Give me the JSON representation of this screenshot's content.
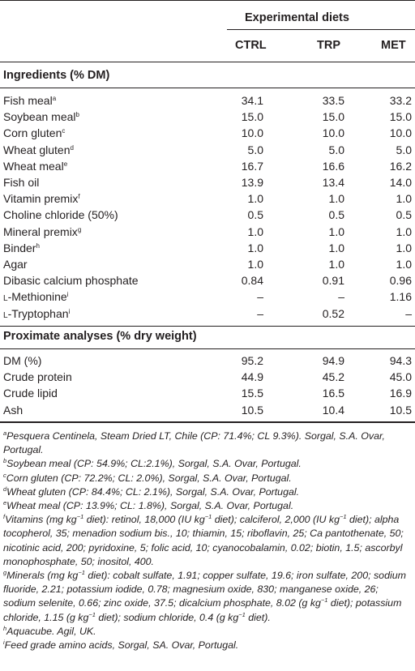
{
  "header": {
    "group_label": "Experimental diets",
    "columns": [
      "CTRL",
      "TRP",
      "MET"
    ]
  },
  "ingredients": {
    "title": "Ingredients (% DM)",
    "rows": [
      {
        "label": "Fish meal",
        "sup": "a",
        "ctrl": "34.1",
        "trp": "33.5",
        "met": "33.2"
      },
      {
        "label": "Soybean meal",
        "sup": "b",
        "ctrl": "15.0",
        "trp": "15.0",
        "met": "15.0"
      },
      {
        "label": "Corn gluten",
        "sup": "c",
        "ctrl": "10.0",
        "trp": "10.0",
        "met": "10.0"
      },
      {
        "label": "Wheat gluten",
        "sup": "d",
        "ctrl": "5.0",
        "trp": "5.0",
        "met": "5.0"
      },
      {
        "label": "Wheat meal",
        "sup": "e",
        "ctrl": "16.7",
        "trp": "16.6",
        "met": "16.2"
      },
      {
        "label": "Fish oil",
        "sup": "",
        "ctrl": "13.9",
        "trp": "13.4",
        "met": "14.0"
      },
      {
        "label": "Vitamin premix",
        "sup": "f",
        "ctrl": "1.0",
        "trp": "1.0",
        "met": "1.0"
      },
      {
        "label": "Choline chloride (50%)",
        "sup": "",
        "ctrl": "0.5",
        "trp": "0.5",
        "met": "0.5"
      },
      {
        "label": "Mineral premix",
        "sup": "g",
        "ctrl": "1.0",
        "trp": "1.0",
        "met": "1.0"
      },
      {
        "label": "Binder",
        "sup": "h",
        "ctrl": "1.0",
        "trp": "1.0",
        "met": "1.0"
      },
      {
        "label": "Agar",
        "sup": "",
        "ctrl": "1.0",
        "trp": "1.0",
        "met": "1.0"
      },
      {
        "label": "Dibasic calcium phosphate",
        "sup": "",
        "ctrl": "0.84",
        "trp": "0.91",
        "met": "0.96"
      },
      {
        "prefix": "l",
        "label": "-Methionine",
        "sup": "i",
        "ctrl": "–",
        "trp": "–",
        "met": "1.16"
      },
      {
        "prefix": "l",
        "label": "-Tryptophan",
        "sup": "i",
        "ctrl": "–",
        "trp": "0.52",
        "met": "–"
      }
    ]
  },
  "proximate": {
    "title": "Proximate analyses (% dry weight)",
    "rows": [
      {
        "label": "DM (%)",
        "ctrl": "95.2",
        "trp": "94.9",
        "met": "94.3"
      },
      {
        "label": "Crude protein",
        "ctrl": "44.9",
        "trp": "45.2",
        "met": "45.0"
      },
      {
        "label": "Crude lipid",
        "ctrl": "15.5",
        "trp": "16.5",
        "met": "16.9"
      },
      {
        "label": "Ash",
        "ctrl": "10.5",
        "trp": "10.4",
        "met": "10.5"
      }
    ]
  },
  "footnotes": {
    "a_mark": "a",
    "a_text": "Pesquera Centinela, Steam Dried LT, Chile (CP: 71.4%; CL 9.3%). Sorgal, S.A. Ovar, Portugal.",
    "b_mark": "b",
    "b_text": "Soybean meal (CP: 54.9%; CL:2.1%), Sorgal, S.A. Ovar, Portugal.",
    "c_mark": "c",
    "c_text": "Corn gluten (CP: 72.2%; CL: 2.0%), Sorgal, S.A. Ovar, Portugal.",
    "d_mark": "d",
    "d_text": "Wheat gluten (CP: 84.4%; CL: 2.1%), Sorgal, S.A. Ovar, Portugal.",
    "e_mark": "e",
    "e_text": "Wheat meal (CP: 13.9%; CL: 1.8%), Sorgal, S.A. Ovar, Portugal.",
    "f_mark": "f",
    "f_t1": "Vitamins (mg kg",
    "f_t2": " diet): retinol, 18,000 (IU kg",
    "f_t3": " diet); calciferol, 2,000 (IU kg",
    "f_t4": " diet); alpha tocopherol, 35; menadion sodium bis., 10; thiamin, 15; riboflavin, 25; Ca pantothenate, 50; nicotinic acid, 200; pyridoxine, 5; folic acid, 10; cyanocobalamin, 0.02; biotin, 1.5; ascorbyl monophosphate, 50; inositol, 400.",
    "g_mark": "g",
    "g_t1": "Minerals (mg kg",
    "g_t2": " diet): cobalt sulfate, 1.91; copper sulfate, 19.6; iron sulfate, 200; sodium fluoride, 2.21; potassium iodide, 0.78; magnesium oxide, 830; manganese oxide, 26; sodium selenite, 0.66; zinc oxide, 37.5; dicalcium phosphate, 8.02 (g kg",
    "g_t3": " diet); potassium chloride, 1.15 (g kg",
    "g_t4": " diet); sodium chloride, 0.4 (g kg",
    "g_t5": " diet).",
    "h_mark": "h",
    "h_text": "Aquacube. Agil, UK.",
    "i_mark": "i",
    "i_text": "Feed grade amino acids, Sorgal, SA. Ovar, Portugal.",
    "neg_exp": "−1"
  }
}
